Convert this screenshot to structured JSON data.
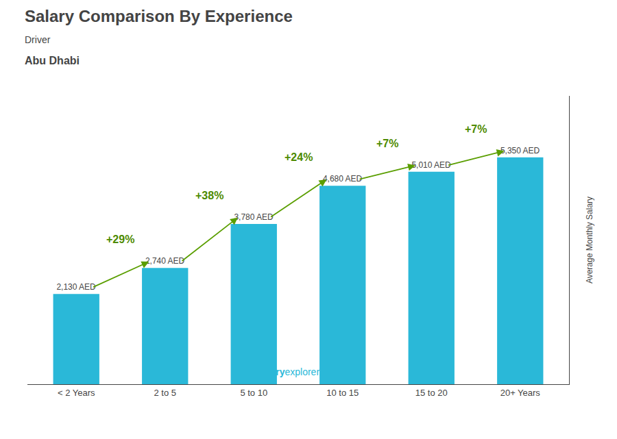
{
  "chart_data": {
    "type": "bar",
    "title": "Salary Comparison By Experience",
    "subtitle": [
      "Driver",
      "Abu Dhabi"
    ],
    "ylabel": "Average Monthly Salary",
    "categories": [
      "< 2 Years",
      "2 to 5",
      "5 to 10",
      "10 to 15",
      "15 to 20",
      "20+ Years"
    ],
    "values": [
      2130,
      2740,
      3780,
      4680,
      5010,
      5350
    ],
    "value_labels": [
      "2,130 AED",
      "2,740 AED",
      "3,780 AED",
      "4,680 AED",
      "5,010 AED",
      "5,350 AED"
    ],
    "data_labels": true,
    "color": "#2ab8d8",
    "ylim": [
      0,
      6800
    ],
    "tick_labels": "x",
    "grid": false,
    "annotations": {
      "changes": [
        "+29%",
        "+38%",
        "+24%",
        "+7%",
        "+7%"
      ],
      "footer": [
        "salary",
        "explorer.com"
      ]
    }
  }
}
